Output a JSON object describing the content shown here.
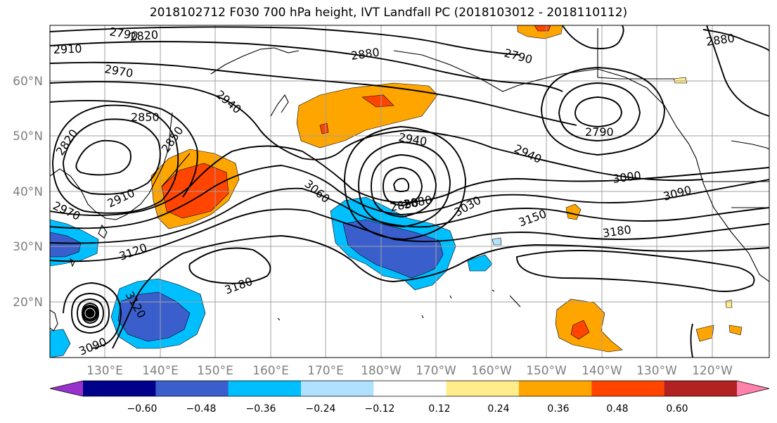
{
  "title": "2018102712 F030 700 hPa height, IVT Landfall PC (2018103012 - 2018110112)",
  "lat_labels": [
    "60°N",
    "50°N",
    "40°N",
    "30°N",
    "20°N"
  ],
  "lon_labels": [
    "130°E",
    "140°E",
    "150°E",
    "160°E",
    "170°E",
    "180°W",
    "170°W",
    "160°W",
    "150°W",
    "140°W",
    "130°W",
    "120°W"
  ],
  "contour_labels": [
    "2790",
    "2820",
    "2910",
    "2970",
    "2850",
    "2940",
    "2850",
    "2820",
    "2970",
    "2910",
    "2880",
    "3120",
    "3090",
    "3120",
    "3180",
    "2940",
    "3060",
    "2850",
    "2880",
    "3030",
    "3150",
    "3180",
    "2940",
    "3000",
    "3090",
    "2790",
    "2790",
    "2880"
  ],
  "colorbar": {
    "ticks": [
      "−0.60",
      "−0.48",
      "−0.36",
      "−0.24",
      "−0.12",
      "0.12",
      "0.24",
      "0.36",
      "0.48",
      "0.60"
    ],
    "colors": [
      "#9932cc",
      "#00008b",
      "#3a5fcd",
      "#00bfff",
      "#b0e2ff",
      "#ffffff",
      "#ffec8b",
      "#ffa500",
      "#ff4500",
      "#b22222",
      "#ff82ab"
    ]
  }
}
